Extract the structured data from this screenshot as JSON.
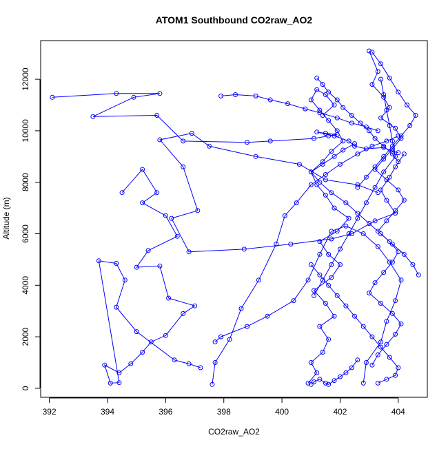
{
  "chart_data": {
    "type": "scatter",
    "title": "ATOM1 Southbound CO2raw_AO2",
    "xlabel": "CO2raw_AO2",
    "ylabel": "Altitude (m)",
    "xlim": [
      391.7,
      405.0
    ],
    "ylim": [
      -350,
      13500
    ],
    "xticks": [
      "392",
      "394",
      "396",
      "398",
      "400",
      "402",
      "404"
    ],
    "yticks": [
      "0",
      "2000",
      "4000",
      "6000",
      "8000",
      "10000",
      "12000"
    ],
    "grid": false,
    "legend": "none",
    "colors": {
      "series": "#0000ff",
      "axes": "#000000",
      "background": "#ffffff"
    },
    "marker": "open-circle",
    "connected": true,
    "series": [
      {
        "x": [
          392.1,
          394.3,
          395.8,
          394.9,
          393.5,
          395.7,
          396.6,
          398.8,
          399.6,
          401.1,
          401.6,
          401.9,
          401.5,
          401.2,
          401.8,
          402.3,
          402.5,
          402.9,
          403.5,
          403.8,
          404.0
        ],
        "y": [
          11300,
          11450,
          11450,
          11300,
          10550,
          10600,
          9600,
          9550,
          9600,
          9700,
          9800,
          9850,
          9900,
          9950,
          9800,
          9600,
          9400,
          9300,
          9350,
          9200,
          9150
        ]
      },
      {
        "x": [
          404.2,
          403.9,
          403.7,
          403.4,
          403.6,
          403.9,
          403.2,
          402.4,
          401.7,
          400.3,
          398.7,
          396.8,
          396.2,
          397.1,
          396.6,
          395.8,
          396.9,
          397.5,
          399.1,
          400.6,
          401.5,
          402.6,
          403.3
        ],
        "y": [
          9100,
          8600,
          8200,
          7700,
          7300,
          6800,
          6500,
          6000,
          5800,
          5600,
          5400,
          5300,
          6600,
          6900,
          8600,
          9650,
          9900,
          9400,
          9000,
          8700,
          8100,
          7900,
          7600
        ]
      },
      {
        "x": [
          394.5,
          395.2,
          395.7,
          395.2,
          396.0,
          396.4,
          395.4,
          395.0,
          395.8,
          396.1,
          397.0,
          396.6,
          396.0,
          395.5,
          395.2,
          394.8,
          394.4,
          393.9,
          394.1,
          394.4,
          393.7,
          394.3,
          394.6,
          394.3,
          395.0,
          396.3,
          396.8,
          397.2
        ],
        "y": [
          7600,
          8500,
          7600,
          7200,
          6700,
          5900,
          5350,
          4700,
          4750,
          3500,
          3200,
          2900,
          2050,
          1800,
          1400,
          950,
          600,
          900,
          200,
          220,
          4950,
          4850,
          4200,
          3150,
          2200,
          1100,
          950,
          800
        ]
      },
      {
        "x": [
          397.6,
          397.7,
          398.2,
          398.6,
          399.2,
          399.8,
          400.1,
          400.5,
          401.0,
          401.5,
          402.0,
          402.6,
          403.1,
          403.6,
          404.0
        ],
        "y": [
          150,
          1000,
          1900,
          3100,
          4200,
          5600,
          6700,
          7200,
          7900,
          8300,
          8700,
          9100,
          9400,
          9600,
          9800
        ]
      },
      {
        "x": [
          397.9,
          398.4,
          399.1,
          399.6,
          400.2,
          400.8,
          401.3,
          401.9,
          402.4,
          402.9,
          403.3
        ],
        "y": [
          11350,
          11400,
          11350,
          11200,
          11050,
          10850,
          10700,
          10500,
          10300,
          10150,
          10000
        ]
      },
      {
        "x": [
          400.9,
          401.2,
          401.0,
          401.4,
          401.6,
          401.3,
          401.8,
          401.5,
          401.1,
          401.7,
          402.0,
          401.6,
          401.3,
          401.9,
          402.3,
          401.8,
          401.5,
          401.2,
          401.0,
          401.4,
          401.7,
          402.1,
          401.9,
          401.6,
          401.3,
          401.0,
          401.2,
          401.5,
          401.8,
          401.4
        ],
        "y": [
          200,
          600,
          1000,
          1400,
          1900,
          2400,
          2800,
          3300,
          3800,
          4300,
          4800,
          5200,
          5700,
          6100,
          6600,
          7000,
          7500,
          7900,
          8400,
          8800,
          9200,
          9600,
          10000,
          10400,
          10800,
          11200,
          11600,
          11400,
          11000,
          10600
        ]
      },
      {
        "x": [
          403.0,
          403.3,
          403.1,
          403.5,
          403.7,
          403.4,
          403.9,
          404.1,
          403.8,
          403.5,
          403.2,
          403.6,
          404.0,
          404.2,
          403.9,
          403.6,
          403.3,
          403.7,
          404.0,
          403.8,
          403.5,
          403.2,
          403.0,
          403.4,
          403.8,
          404.1,
          403.9,
          403.6,
          403.3,
          403.1
        ],
        "y": [
          13100,
          12300,
          11800,
          11300,
          10900,
          10500,
          10100,
          9700,
          9300,
          8900,
          8500,
          8100,
          7700,
          7300,
          6900,
          6500,
          6100,
          5700,
          5300,
          4900,
          4500,
          4100,
          3700,
          3300,
          2900,
          2500,
          2100,
          1700,
          1300,
          900
        ]
      },
      {
        "x": [
          402.8,
          402.9,
          403.4,
          403.6,
          403.9,
          404.1,
          403.7,
          403.3,
          402.8,
          402.2,
          401.7,
          401.3,
          400.9,
          400.4,
          399.5,
          398.8,
          397.9,
          397.7
        ],
        "y": [
          200,
          1000,
          1800,
          2600,
          3400,
          4200,
          4900,
          5500,
          6000,
          6300,
          6100,
          5200,
          4200,
          3400,
          2800,
          2400,
          2000,
          1800
        ]
      },
      {
        "x": [
          403.4,
          403.5,
          403.6,
          403.7,
          403.8,
          403.9,
          403.5,
          403.2,
          402.9,
          402.6,
          402.3,
          402.0,
          401.7,
          401.4,
          401.1
        ],
        "y": [
          12000,
          11400,
          10800,
          10200,
          9600,
          9000,
          8400,
          7800,
          7200,
          6600,
          6000,
          5400,
          4800,
          4200,
          3600
        ]
      },
      {
        "x": [
          402.5,
          402.1,
          401.8,
          401.4,
          401.0,
          401.3,
          401.7,
          402.2,
          402.6,
          403.0,
          403.4,
          403.8,
          404.2,
          404.5,
          404.7
        ],
        "y": [
          9500,
          9250,
          9000,
          8700,
          8400,
          8000,
          7600,
          7200,
          6800,
          6400,
          6000,
          5600,
          5200,
          4800,
          4400
        ]
      },
      {
        "x": [
          403.1,
          403.4,
          403.7,
          404.0,
          404.3,
          404.6,
          404.4,
          404.1,
          403.8,
          403.5,
          403.2,
          402.9,
          402.6
        ],
        "y": [
          13050,
          12600,
          12050,
          11500,
          11000,
          10600,
          10200,
          9800,
          9400,
          9000,
          8600,
          8200,
          7800
        ]
      },
      {
        "x": [
          401.0,
          401.1,
          401.3,
          401.5,
          401.6,
          401.8,
          402.0,
          402.2,
          402.4,
          402.6
        ],
        "y": [
          150,
          250,
          350,
          200,
          150,
          300,
          450,
          600,
          800,
          1100
        ]
      },
      {
        "x": [
          403.3,
          403.6,
          403.9,
          404.0,
          403.7,
          403.4,
          403.1,
          402.8,
          402.5,
          402.2,
          401.9,
          401.6,
          401.3,
          401.0
        ],
        "y": [
          200,
          350,
          500,
          800,
          1200,
          1600,
          2000,
          2400,
          2800,
          3200,
          3600,
          4000,
          4400,
          4800
        ]
      },
      {
        "x": [
          401.2,
          401.4,
          401.6,
          401.9,
          402.1,
          402.4,
          402.7,
          403.0,
          403.2,
          403.5,
          403.8,
          404.0
        ],
        "y": [
          12050,
          11800,
          11500,
          11200,
          10900,
          10600,
          10300,
          10000,
          9700,
          9400,
          9100,
          8800
        ]
      }
    ]
  }
}
